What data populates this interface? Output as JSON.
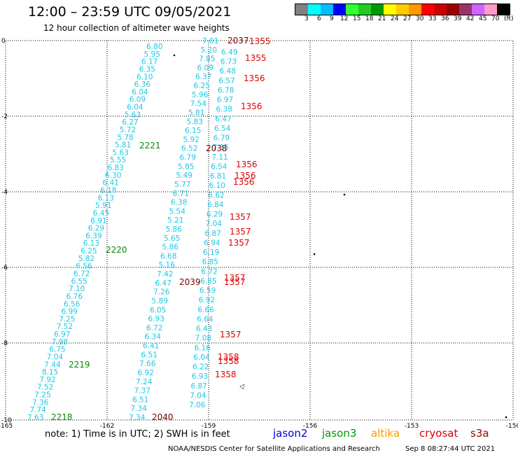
{
  "header": {
    "title": "12:00 – 23:59 UTC 09/05/2021",
    "subtitle": "12 hour collection of altimeter wave heights"
  },
  "legend": {
    "colors": [
      "#808080",
      "#00ffff",
      "#00bfff",
      "#0000ff",
      "#33ff33",
      "#22cc22",
      "#009900",
      "#ffff00",
      "#ffcc00",
      "#ff9900",
      "#ff0000",
      "#cc0000",
      "#990000",
      "#993366",
      "#cc66ff",
      "#ff99cc",
      "#000000"
    ],
    "labels": [
      "3",
      "6",
      "9",
      "12",
      "15",
      "18",
      "21",
      "24",
      "27",
      "30",
      "33",
      "36",
      "39",
      "42",
      "45",
      "70",
      "(ft)"
    ]
  },
  "axes": {
    "x_ticks": [
      "-165",
      "-162",
      "-159",
      "-156",
      "-153",
      "-150"
    ],
    "y_ticks": [
      "0",
      "-2",
      "-4",
      "-6",
      "-8",
      "-10"
    ]
  },
  "tracks": {
    "color_light": "#1ec8e6",
    "color_red": "#e00000",
    "color_darkred": "#7a0000",
    "color_green": "#0a8a0a",
    "track1": [
      "6.80",
      "5.95",
      "6.17",
      "6.35",
      "6.10",
      "6.36",
      "6.04",
      "6.09",
      "6.04",
      "5.63",
      "6.27",
      "5.72",
      "5.78",
      "5.81",
      "5.63",
      "5.55",
      "6.83",
      "6.30",
      "6.41",
      "6.18",
      "6.13",
      "5.91",
      "6.45",
      "6.91",
      "6.29",
      "6.39",
      "6.13",
      "6.25",
      "5.82",
      "6.56",
      "6.72",
      "6.55",
      "7.10",
      "6.76",
      "6.56",
      "6.99",
      "7.25",
      "7.52",
      "6.97",
      "7.98",
      "6.75",
      "7.04",
      "7.44",
      "8.15",
      "7.92",
      "7.52",
      "7.25",
      "7.36",
      "7.74",
      "7.63"
    ],
    "track2": [
      "7.01",
      "5.20",
      "7.85",
      "6.09",
      "6.37",
      "6.25",
      "5.96",
      "7.54",
      "5.81",
      "5.83",
      "6.15",
      "5.92",
      "6.52",
      "6.79",
      "5.85",
      "5.49",
      "5.77",
      "6.71",
      "6.38",
      "5.54",
      "5.21",
      "5.86",
      "5.65",
      "5.86",
      "6.68",
      "5.16",
      "7.42",
      "6.47",
      "7.26",
      "5.89",
      "6.05",
      "6.93",
      "6.72",
      "6.34",
      "6.41",
      "6.51",
      "7.66",
      "6.92",
      "7.24",
      "7.37",
      "6.51",
      "7.34",
      "7.34"
    ],
    "track3": [
      "6.49",
      "6.73",
      "6.48",
      "6.57",
      "6.78",
      "6.97",
      "6.38",
      "6.47",
      "6.54",
      "6.79",
      "7.15",
      "7.11",
      "6.54",
      "6.81",
      "6.10",
      "6.62",
      "6.84",
      "6.29",
      "7.04",
      "6.87",
      "6.94",
      "6.19",
      "6.85",
      "6.72",
      "6.85",
      "6.59",
      "6.92",
      "6.66",
      "6.64",
      "6.43",
      "7.08",
      "6.16",
      "6.04",
      "6.22",
      "6.93",
      "6.87",
      "7.04",
      "7.06"
    ],
    "labels_track1": [
      "2221",
      "2220",
      "2219",
      "2218"
    ],
    "labels_track2": [
      "2037",
      "2038",
      "2039",
      "2040"
    ],
    "labels_track3": [
      "1355",
      "1355",
      "1356",
      "1356",
      "1356",
      "1356",
      "1356",
      "1357",
      "1357",
      "1357",
      "1357",
      "1357",
      "1357",
      "1358",
      "1358",
      "1358"
    ]
  },
  "footer": {
    "note": "note:  1) Time is in UTC;  2) SWH is in feet",
    "satellites": [
      {
        "name": "jason2",
        "color": "#0000dd"
      },
      {
        "name": "jason3",
        "color": "#009900"
      },
      {
        "name": "altika",
        "color": "#ff9900"
      },
      {
        "name": "cryosat",
        "color": "#dd0000"
      },
      {
        "name": "s3a",
        "color": "#990000"
      }
    ],
    "credit": "NOAA/NESDIS Center for Satellite Applications and Research",
    "timestamp": "Sep  8 08:27:44 UTC 2021"
  }
}
